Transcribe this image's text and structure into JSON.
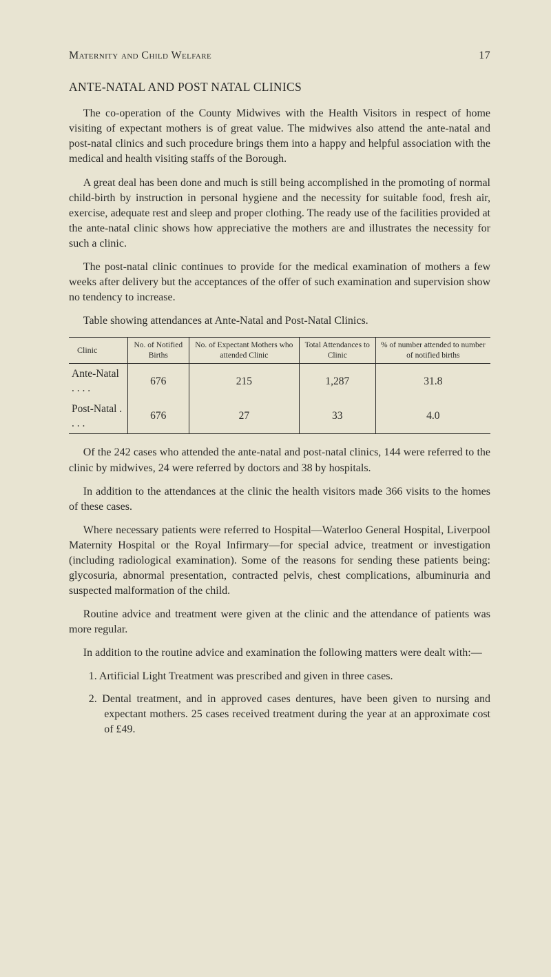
{
  "header": {
    "left": "Maternity and Child Welfare",
    "pageNumber": "17"
  },
  "sectionTitle": "ANTE-NATAL AND POST NATAL CLINICS",
  "paragraphs": {
    "p1": "The co-operation of the County Midwives with the Health Visitors in respect of home visiting of expectant mothers is of great value. The midwives also attend the ante-natal and post-natal clinics and such procedure brings them into a happy and helpful association with the medical and health visiting staffs of the Borough.",
    "p2": "A great deal has been done and much is still being accomplished in the promoting of normal child-birth by instruction in personal hygiene and the necessity for suitable food, fresh air, exercise, adequate rest and sleep and proper clothing. The ready use of the facilities provided at the ante-natal clinic shows how appreciative the mothers are and illustrates the necessity for such a clinic.",
    "p3": "The post-natal clinic continues to provide for the medical examination of mothers a few weeks after delivery but the acceptances of the offer of such examination and supervision show no tendency to increase.",
    "p4": "Table showing attendances at Ante-Natal and Post-Natal Clinics.",
    "p5": "Of the 242 cases who attended the ante-natal and post-natal clinics, 144 were referred to the clinic by midwives, 24 were referred by doctors and 38 by hospitals.",
    "p6": "In addition to the attendances at the clinic the health visitors made 366 visits to the homes of these cases.",
    "p7": "Where necessary patients were referred to Hospital—Waterloo General Hospital, Liverpool Maternity Hospital or the Royal Infirmary—for special advice, treatment or investigation (including radiological examination). Some of the reasons for sending these patients being: glycosuria, abnormal presentation, contracted pelvis, chest complications, albuminuria and suspected malformation of the child.",
    "p8": "Routine advice and treatment were given at the clinic and the attendance of patients was more regular.",
    "p9": "In addition to the routine advice and examination the following matters were dealt with:—"
  },
  "table": {
    "columns": {
      "c0": "Clinic",
      "c1": "No. of Notified Births",
      "c2": "No. of Expectant Mothers who attended Clinic",
      "c3": "Total Attendances to Clinic",
      "c4": "% of number attended to number of notified births"
    },
    "rows": {
      "r0": {
        "label": "Ante-Natal . . . .",
        "v1": "676",
        "v2": "215",
        "v3": "1,287",
        "v4": "31.8"
      },
      "r1": {
        "label": "Post-Natal . . . .",
        "v1": "676",
        "v2": "27",
        "v3": "33",
        "v4": "4.0"
      }
    }
  },
  "list": {
    "i1": "1. Artificial Light Treatment was prescribed and given in three cases.",
    "i2": "2. Dental treatment, and in approved cases dentures, have been given to nursing and expectant mothers. 25 cases received treatment during the year at an approximate cost of £49."
  }
}
